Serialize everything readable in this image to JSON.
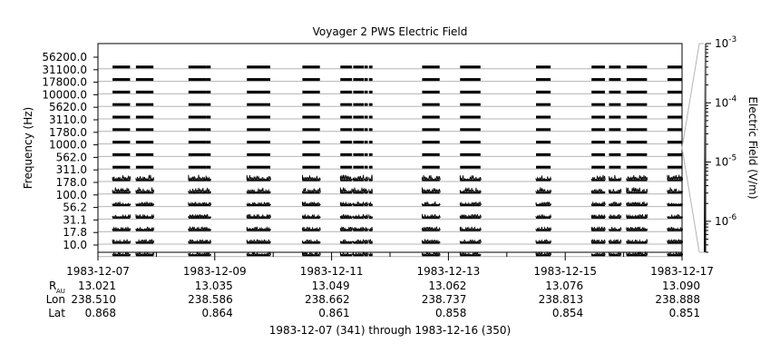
{
  "chart_data": {
    "type": "heatmap",
    "title": "Voyager 2 PWS Electric Field",
    "ylabel": "Frequency (Hz)",
    "colorbar_label": "Electric Field (V/m)",
    "colorbar_scale": "log",
    "colorbar_range": [
      3e-07,
      0.001
    ],
    "colorbar_tick_labels": [
      {
        "base": "10",
        "exp": "-3",
        "value": 0.001
      },
      {
        "base": "10",
        "exp": "-4",
        "value": 0.0001
      },
      {
        "base": "10",
        "exp": "-5",
        "value": 1e-05
      },
      {
        "base": "10",
        "exp": "-6",
        "value": 1e-06
      }
    ],
    "colorbar_gradient": [
      "#ffffff",
      "#000000"
    ],
    "frequency_channels": [
      "56200.0",
      "31100.0",
      "17800.0",
      "10000.0",
      "5620.0",
      "3110.0",
      "1780.0",
      "1000.0",
      "562.0",
      "311.0",
      "178.0",
      "100.0",
      "56.2",
      "31.1",
      "17.8",
      "10.0"
    ],
    "x_tick_labels": [
      "1983-12-07",
      "1983-12-09",
      "1983-12-11",
      "1983-12-13",
      "1983-12-15",
      "1983-12-17"
    ],
    "x_range_days": [
      0,
      10
    ],
    "x_major_tick_days": [
      0,
      2,
      4,
      6,
      8,
      10
    ],
    "x_minor_tick_days": [
      1,
      3,
      5,
      7,
      9
    ],
    "data_intervals_days": [
      [
        0.25,
        0.55
      ],
      [
        0.65,
        0.95
      ],
      [
        1.55,
        1.85
      ],
      [
        1.85,
        1.93
      ],
      [
        2.55,
        2.95
      ],
      [
        3.5,
        3.8
      ],
      [
        4.15,
        4.35
      ],
      [
        4.37,
        4.55
      ],
      [
        4.56,
        4.62
      ],
      [
        4.64,
        4.7
      ],
      [
        5.55,
        5.85
      ],
      [
        6.2,
        6.55
      ],
      [
        7.5,
        7.75
      ],
      [
        8.45,
        8.68
      ],
      [
        8.75,
        8.95
      ],
      [
        9.05,
        9.4
      ],
      [
        9.75,
        10.0
      ]
    ],
    "ephemeris": {
      "row_labels": [
        {
          "main": "R",
          "sub": "AU"
        },
        {
          "main": "Lon",
          "sub": ""
        },
        {
          "main": "Lat",
          "sub": ""
        }
      ],
      "R_AU": [
        "13.021",
        "13.035",
        "13.049",
        "13.062",
        "13.076",
        "13.090"
      ],
      "Lon": [
        "238.510",
        "238.586",
        "238.662",
        "238.737",
        "238.813",
        "238.888"
      ],
      "Lat": [
        "0.868",
        "0.864",
        "0.861",
        "0.858",
        "0.854",
        "0.851"
      ]
    },
    "date_range_label": "1983-12-07 (341) through 1983-12-16 (350)",
    "colors": {
      "data": "#000000",
      "frame": "#000000",
      "channel_line": "#b4b4b4"
    }
  }
}
